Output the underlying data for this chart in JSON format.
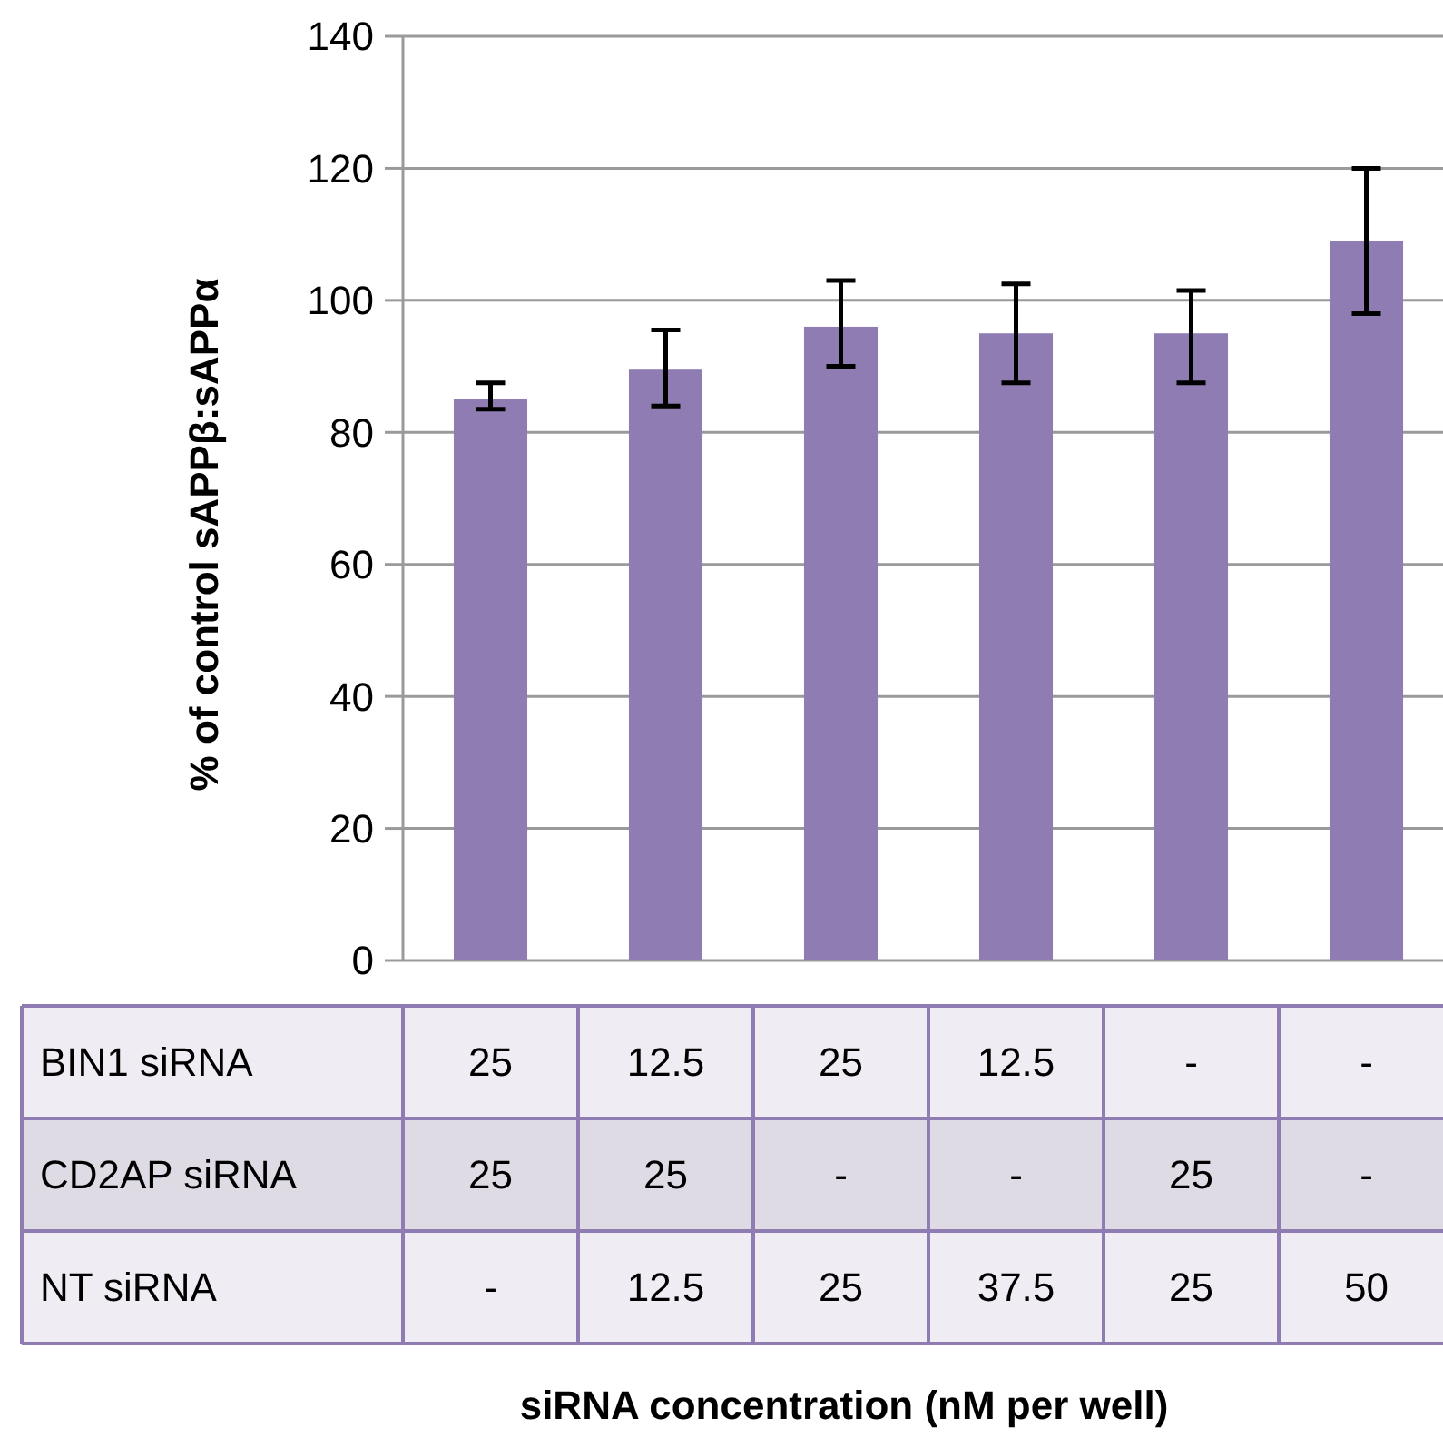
{
  "chart_data": {
    "type": "bar",
    "ylabel": "% of control sAPPβ:sAPPα",
    "categories": [
      "25\n25\n-",
      "12.5\n25\n12.5",
      "25\n-\n25",
      "12.5\n-\n37.5",
      "-\n25\n25",
      "-\n-\n50"
    ],
    "values": [
      85,
      89.5,
      96,
      95,
      95,
      109
    ],
    "errors": [
      [
        83.5,
        87.5
      ],
      [
        84,
        95.5
      ],
      [
        90,
        103
      ],
      [
        87.5,
        102.5
      ],
      [
        87.5,
        101.5
      ],
      [
        98,
        120
      ]
    ],
    "color": "#8e7cb3",
    "ylim": [
      0,
      140
    ],
    "yticks": [
      0,
      20,
      40,
      60,
      80,
      100,
      120,
      140
    ],
    "grid": "y",
    "annotations": [
      "BIN1 siRNA",
      "CD2AP siRNA",
      "NT siRNA",
      "siRNA concentration (nM per well)"
    ]
  }
}
